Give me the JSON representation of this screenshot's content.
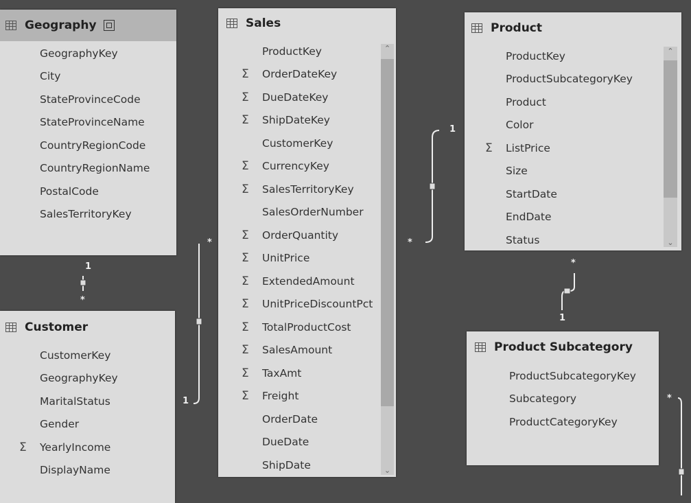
{
  "tables": {
    "geography": {
      "title": "Geography",
      "fields": [
        {
          "name": "GeographyKey",
          "sum": false
        },
        {
          "name": "City",
          "sum": false
        },
        {
          "name": "StateProvinceCode",
          "sum": false
        },
        {
          "name": "StateProvinceName",
          "sum": false
        },
        {
          "name": "CountryRegionCode",
          "sum": false
        },
        {
          "name": "CountryRegionName",
          "sum": false
        },
        {
          "name": "PostalCode",
          "sum": false
        },
        {
          "name": "SalesTerritoryKey",
          "sum": false
        }
      ]
    },
    "customer": {
      "title": "Customer",
      "fields": [
        {
          "name": "CustomerKey",
          "sum": false
        },
        {
          "name": "GeographyKey",
          "sum": false
        },
        {
          "name": "MaritalStatus",
          "sum": false
        },
        {
          "name": "Gender",
          "sum": false
        },
        {
          "name": "YearlyIncome",
          "sum": true
        },
        {
          "name": "DisplayName",
          "sum": false
        }
      ]
    },
    "sales": {
      "title": "Sales",
      "fields": [
        {
          "name": "ProductKey",
          "sum": false
        },
        {
          "name": "OrderDateKey",
          "sum": true
        },
        {
          "name": "DueDateKey",
          "sum": true
        },
        {
          "name": "ShipDateKey",
          "sum": true
        },
        {
          "name": "CustomerKey",
          "sum": false
        },
        {
          "name": "CurrencyKey",
          "sum": true
        },
        {
          "name": "SalesTerritoryKey",
          "sum": true
        },
        {
          "name": "SalesOrderNumber",
          "sum": false
        },
        {
          "name": "OrderQuantity",
          "sum": true
        },
        {
          "name": "UnitPrice",
          "sum": true
        },
        {
          "name": "ExtendedAmount",
          "sum": true
        },
        {
          "name": "UnitPriceDiscountPct",
          "sum": true
        },
        {
          "name": "TotalProductCost",
          "sum": true
        },
        {
          "name": "SalesAmount",
          "sum": true
        },
        {
          "name": "TaxAmt",
          "sum": true
        },
        {
          "name": "Freight",
          "sum": true
        },
        {
          "name": "OrderDate",
          "sum": false
        },
        {
          "name": "DueDate",
          "sum": false
        },
        {
          "name": "ShipDate",
          "sum": false
        }
      ]
    },
    "product": {
      "title": "Product",
      "fields": [
        {
          "name": "ProductKey",
          "sum": false
        },
        {
          "name": "ProductSubcategoryKey",
          "sum": false
        },
        {
          "name": "Product",
          "sum": false
        },
        {
          "name": "Color",
          "sum": false
        },
        {
          "name": "ListPrice",
          "sum": true
        },
        {
          "name": "Size",
          "sum": false
        },
        {
          "name": "StartDate",
          "sum": false
        },
        {
          "name": "EndDate",
          "sum": false
        },
        {
          "name": "Status",
          "sum": false
        }
      ]
    },
    "subcategory": {
      "title": "Product Subcategory",
      "fields": [
        {
          "name": "ProductSubcategoryKey",
          "sum": false
        },
        {
          "name": "Subcategory",
          "sum": false
        },
        {
          "name": "ProductCategoryKey",
          "sum": false
        }
      ]
    }
  },
  "sum_symbol": "Σ",
  "relationships": {
    "geo_customer": {
      "one": "1",
      "many": "*"
    },
    "customer_sales": {
      "one": "1",
      "many": "*"
    },
    "sales_product": {
      "one": "1",
      "many": "*"
    },
    "product_subcategory": {
      "one": "1",
      "many": "*"
    },
    "subcategory_category": {
      "many": "*"
    }
  }
}
